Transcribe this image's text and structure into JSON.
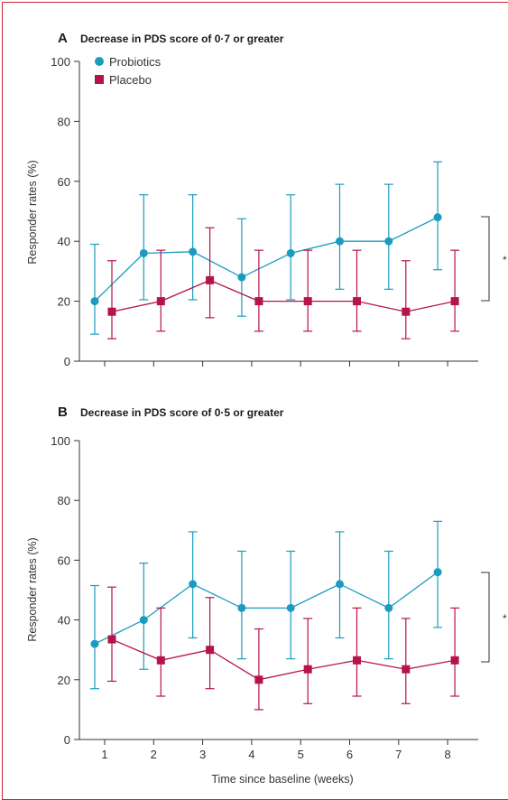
{
  "chart_data": [
    {
      "type": "line",
      "panel_letter": "A",
      "title": "Decrease in PDS score of 0·7 or greater",
      "xlabel": "",
      "ylabel": "Responder rates (%)",
      "ylim": [
        0,
        100
      ],
      "yticks": [
        "0",
        "20",
        "40",
        "60",
        "80",
        "100"
      ],
      "x": [
        1,
        2,
        3,
        4,
        5,
        6,
        7,
        8
      ],
      "xtick_labels": [],
      "legend": {
        "placement": "top-left"
      },
      "significance": "*",
      "series": [
        {
          "name": "Probiotics",
          "color": "#1b9cbf",
          "marker": "circle",
          "values": [
            20,
            36,
            36.5,
            28,
            36,
            40,
            40,
            48
          ],
          "ci_low": [
            9,
            20.5,
            20.5,
            15,
            20.5,
            24,
            24,
            30.5
          ],
          "ci_high": [
            39,
            55.5,
            55.5,
            47.5,
            55.5,
            59,
            59,
            66.5
          ]
        },
        {
          "name": "Placebo",
          "color": "#b5134a",
          "marker": "square",
          "values": [
            16.5,
            20,
            27,
            20,
            20,
            20,
            16.5,
            20
          ],
          "ci_low": [
            7.5,
            10,
            14.5,
            10,
            10,
            10,
            7.5,
            10
          ],
          "ci_high": [
            33.5,
            37,
            44.5,
            37,
            37,
            37,
            33.5,
            37
          ]
        }
      ]
    },
    {
      "type": "line",
      "panel_letter": "B",
      "title": "Decrease in PDS score of 0·5 or greater",
      "xlabel": "Time since baseline (weeks)",
      "ylabel": "Responder rates (%)",
      "ylim": [
        0,
        100
      ],
      "yticks": [
        "0",
        "20",
        "40",
        "60",
        "80",
        "100"
      ],
      "x": [
        1,
        2,
        3,
        4,
        5,
        6,
        7,
        8
      ],
      "xtick_labels": [
        "1",
        "2",
        "3",
        "4",
        "5",
        "6",
        "7",
        "8"
      ],
      "significance": "*",
      "series": [
        {
          "name": "Probiotics",
          "color": "#1b9cbf",
          "marker": "circle",
          "values": [
            32,
            40,
            52,
            44,
            44,
            52,
            44,
            56
          ],
          "ci_low": [
            17,
            23.5,
            34,
            27,
            27,
            34,
            27,
            37.5
          ],
          "ci_high": [
            51.5,
            59,
            69.5,
            63,
            63,
            69.5,
            63,
            73
          ]
        },
        {
          "name": "Placebo",
          "color": "#b5134a",
          "marker": "square",
          "values": [
            33.5,
            26.5,
            30,
            20,
            23.5,
            26.5,
            23.5,
            26.5
          ],
          "ci_low": [
            19.5,
            14.5,
            17,
            10,
            12,
            14.5,
            12,
            14.5
          ],
          "ci_high": [
            51,
            44,
            47.5,
            37,
            40.5,
            44,
            40.5,
            44
          ]
        }
      ]
    }
  ]
}
